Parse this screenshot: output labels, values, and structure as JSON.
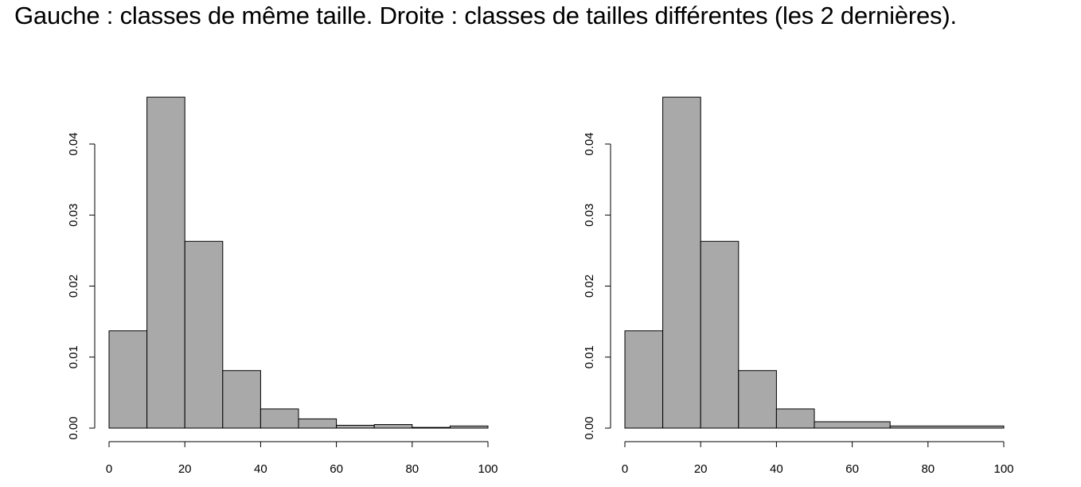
{
  "title": "Gauche : classes de même taille.  Droite : classes de tailles différentes (les 2 dernières).",
  "chart_data": [
    {
      "type": "bar",
      "bins": [
        [
          0,
          10
        ],
        [
          10,
          20
        ],
        [
          20,
          30
        ],
        [
          30,
          40
        ],
        [
          40,
          50
        ],
        [
          50,
          60
        ],
        [
          60,
          70
        ],
        [
          70,
          80
        ],
        [
          80,
          90
        ],
        [
          90,
          100
        ]
      ],
      "values": [
        0.0137,
        0.0466,
        0.0263,
        0.0081,
        0.0027,
        0.0013,
        0.0004,
        0.0005,
        0.0001,
        0.0003
      ],
      "xlim": [
        0,
        100
      ],
      "ylim": [
        0,
        0.04
      ],
      "xticks": [
        0,
        20,
        40,
        60,
        80,
        100
      ],
      "yticks": [
        0.0,
        0.01,
        0.02,
        0.03,
        0.04
      ],
      "xtick_labels": [
        "0",
        "20",
        "40",
        "60",
        "80",
        "100"
      ],
      "ytick_labels": [
        "0.00",
        "0.01",
        "0.02",
        "0.03",
        "0.04"
      ],
      "xlabel": "",
      "ylabel": "",
      "grid": false
    },
    {
      "type": "bar",
      "bins": [
        [
          0,
          10
        ],
        [
          10,
          20
        ],
        [
          20,
          30
        ],
        [
          30,
          40
        ],
        [
          40,
          50
        ],
        [
          50,
          70
        ],
        [
          70,
          100
        ]
      ],
      "values": [
        0.0137,
        0.0466,
        0.0263,
        0.0081,
        0.0027,
        0.0009,
        0.0003
      ],
      "xlim": [
        0,
        100
      ],
      "ylim": [
        0,
        0.04
      ],
      "xticks": [
        0,
        20,
        40,
        60,
        80,
        100
      ],
      "yticks": [
        0.0,
        0.01,
        0.02,
        0.03,
        0.04
      ],
      "xtick_labels": [
        "0",
        "20",
        "40",
        "60",
        "80",
        "100"
      ],
      "ytick_labels": [
        "0.00",
        "0.01",
        "0.02",
        "0.03",
        "0.04"
      ],
      "xlabel": "",
      "ylabel": "",
      "grid": false
    }
  ]
}
